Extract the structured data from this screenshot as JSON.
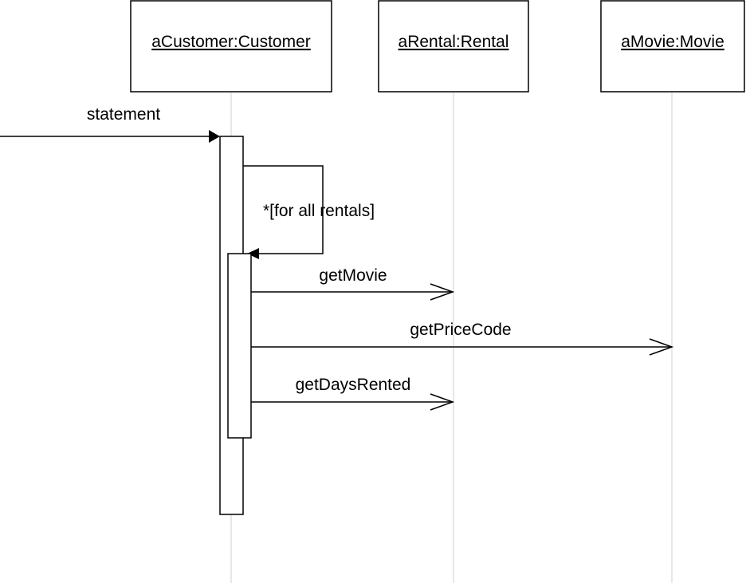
{
  "diagram": {
    "type": "UML sequence diagram",
    "objects": [
      {
        "label": "aCustomer:Customer"
      },
      {
        "label": "aRental:Rental"
      },
      {
        "label": "aMovie:Movie"
      }
    ],
    "messages": {
      "statement": "statement",
      "loop_guard": "*[for all rentals]",
      "get_movie": "getMovie",
      "get_price_code": "getPriceCode",
      "get_days_rented": "getDaysRented"
    }
  }
}
